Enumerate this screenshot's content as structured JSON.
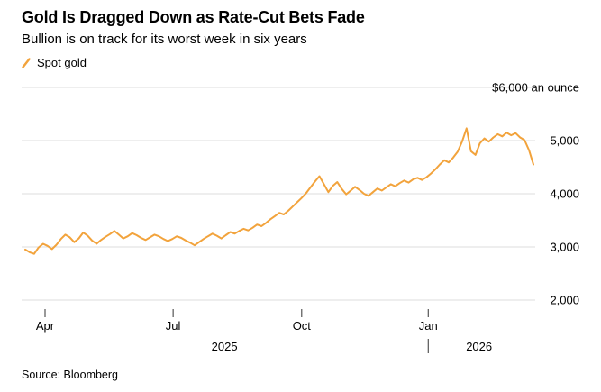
{
  "header": {
    "title": "Gold Is Dragged Down as Rate-Cut Bets Fade",
    "subtitle": "Bullion is on track for its worst week in six years"
  },
  "legend": {
    "series_label": "Spot gold",
    "swatch_color": "#F2A33C"
  },
  "footer": {
    "source": "Source: Bloomberg"
  },
  "chart_data": {
    "type": "line",
    "title": "Gold Is Dragged Down as Rate-Cut Bets Fade",
    "subtitle": "Bullion is on track for its worst week in six years",
    "unit": "$ an ounce",
    "ylim": [
      2000,
      6000
    ],
    "grid": true,
    "axis_side": "right",
    "legend_position": "top-left",
    "line_color": "#F2A33C",
    "grid_color": "#dcdcdc",
    "tick_color": "#333333",
    "y_ticks": [
      {
        "value": 6000,
        "label": "$6,000 an ounce"
      },
      {
        "value": 5000,
        "label": "5,000"
      },
      {
        "value": 4000,
        "label": "4,000"
      },
      {
        "value": 3000,
        "label": "3,000"
      },
      {
        "value": 2000,
        "label": "2,000"
      }
    ],
    "x_ticks": [
      {
        "label": "Apr",
        "t": 0.039
      },
      {
        "label": "Jul",
        "t": 0.291
      },
      {
        "label": "Oct",
        "t": 0.544
      },
      {
        "label": "Jan",
        "t": 0.793
      }
    ],
    "year_labels": [
      {
        "label": "2025",
        "t": 0.392
      },
      {
        "label": "2026",
        "t": 0.893
      }
    ],
    "year_separator_t": 0.793,
    "series": [
      {
        "name": "Spot gold",
        "color": "#F2A33C",
        "values": [
          2950,
          2900,
          2870,
          2990,
          3060,
          3020,
          2960,
          3040,
          3150,
          3230,
          3180,
          3090,
          3160,
          3270,
          3210,
          3120,
          3060,
          3130,
          3190,
          3240,
          3300,
          3230,
          3160,
          3200,
          3260,
          3220,
          3170,
          3130,
          3180,
          3230,
          3200,
          3150,
          3110,
          3150,
          3200,
          3170,
          3120,
          3080,
          3030,
          3090,
          3150,
          3200,
          3250,
          3210,
          3160,
          3220,
          3280,
          3250,
          3300,
          3340,
          3310,
          3360,
          3420,
          3390,
          3450,
          3520,
          3580,
          3640,
          3610,
          3680,
          3760,
          3840,
          3920,
          4010,
          4120,
          4230,
          4330,
          4180,
          4030,
          4150,
          4220,
          4090,
          3990,
          4060,
          4130,
          4070,
          4000,
          3960,
          4030,
          4100,
          4060,
          4120,
          4180,
          4140,
          4200,
          4250,
          4210,
          4270,
          4300,
          4260,
          4310,
          4380,
          4460,
          4550,
          4630,
          4590,
          4680,
          4790,
          4980,
          5230,
          4800,
          4730,
          4950,
          5040,
          4980,
          5060,
          5120,
          5080,
          5150,
          5100,
          5140,
          5060,
          5010,
          4820,
          4550
        ]
      }
    ]
  }
}
